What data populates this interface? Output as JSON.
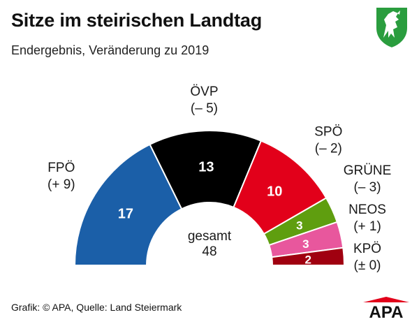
{
  "title": "Sitze im steirischen Landtag",
  "subtitle": "Endergebnis, Veränderung zu 2019",
  "source": "Grafik: © APA, Quelle: Land Steiermark",
  "logo_text": "APA",
  "crest_icon": "styrian-panther-crest",
  "chart_data": {
    "type": "pie",
    "variant": "half-donut (parliament seats)",
    "title": "Sitze im steirischen Landtag",
    "subtitle": "Endergebnis, Veränderung zu 2019",
    "center_label": "gesamt",
    "total": 48,
    "parties": [
      {
        "name": "FPÖ",
        "seats": 17,
        "change": "(+ 9)",
        "color": "#1b5fa8"
      },
      {
        "name": "ÖVP",
        "seats": 13,
        "change": "(– 5)",
        "color": "#000000"
      },
      {
        "name": "SPÖ",
        "seats": 10,
        "change": "(– 2)",
        "color": "#e2001a"
      },
      {
        "name": "GRÜNE",
        "seats": 3,
        "change": "(– 3)",
        "color": "#5f9e0f"
      },
      {
        "name": "NEOS",
        "seats": 3,
        "change": "(+ 1)",
        "color": "#e8579d"
      },
      {
        "name": "KPÖ",
        "seats": 2,
        "change": "(± 0)",
        "color": "#a00010"
      }
    ]
  },
  "colors": {
    "logo_red": "#e2001a",
    "crest_green": "#2a9d3e",
    "label_text": "#1a1a1a",
    "slice_value_text": "#ffffff"
  }
}
